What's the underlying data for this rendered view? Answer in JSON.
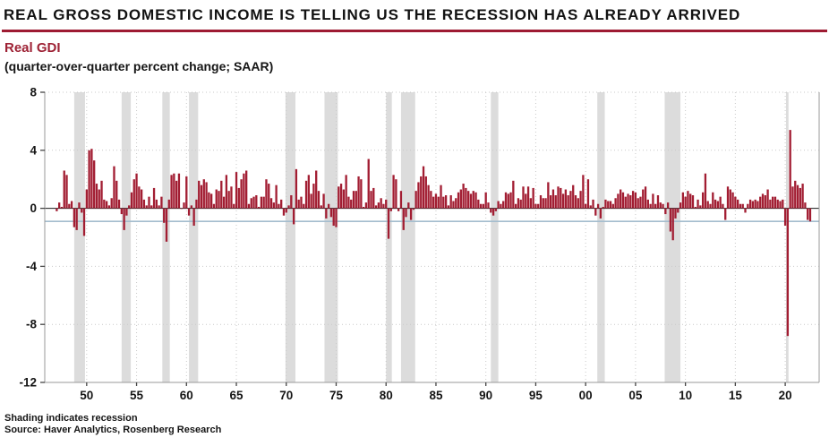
{
  "header": {
    "title": "REAL GROSS DOMESTIC INCOME IS TELLING US THE RECESSION HAS ALREADY ARRIVED",
    "series_label": "Real GDI",
    "unit_label": "(quarter-over-quarter percent change; SAAR)"
  },
  "footer": {
    "note": "Shading indicates recession",
    "source": "Source: Haver Analytics, Rosenberg Research"
  },
  "colors": {
    "bar": "#A21D32",
    "accent_red": "#9E1B32",
    "recession_shading": "#DCDCDC",
    "reference_line": "#A4BDCE",
    "grid": "#C9C9C9",
    "axis": "#9A9A9A",
    "tick": "#444444",
    "zero_line": "#1A1A1A",
    "text": "#151515"
  },
  "chart_data": {
    "type": "bar",
    "title": "Real GDI",
    "xlabel": "",
    "ylabel": "quarter-over-quarter percent change; SAAR",
    "ylim": [
      -12,
      8
    ],
    "y_ticks": [
      8,
      4,
      0,
      -4,
      -8,
      -12
    ],
    "dotted_gridline_values": [
      8,
      4,
      -4,
      -8
    ],
    "x_tick_years": [
      1950,
      1955,
      1960,
      1965,
      1970,
      1975,
      1980,
      1985,
      1990,
      1995,
      2000,
      2005,
      2010,
      2015,
      2020
    ],
    "x_tick_labels": [
      "50",
      "55",
      "60",
      "65",
      "70",
      "75",
      "80",
      "85",
      "90",
      "95",
      "00",
      "05",
      "10",
      "15",
      "20"
    ],
    "x_domain_years": [
      1945.8,
      2023.4
    ],
    "frequency": "quarterly",
    "start_year": 1947,
    "start_quarter": 1,
    "end_label": "2022 Q3",
    "reference_line_value": -0.9,
    "grid": true,
    "legend": "none",
    "recessions": [
      [
        1948.75,
        1949.83
      ],
      [
        1953.5,
        1954.42
      ],
      [
        1957.58,
        1958.33
      ],
      [
        1960.25,
        1961.17
      ],
      [
        1969.92,
        1970.92
      ],
      [
        1973.83,
        1975.17
      ],
      [
        1980.0,
        1980.58
      ],
      [
        1981.5,
        1982.92
      ],
      [
        1990.5,
        1991.25
      ],
      [
        2001.17,
        2001.92
      ],
      [
        2007.92,
        2009.5
      ],
      [
        2020.08,
        2020.33
      ]
    ],
    "values": [
      -0.2,
      0.4,
      0.1,
      2.6,
      2.3,
      0.3,
      0.5,
      -1.3,
      -1.5,
      0.4,
      -0.3,
      -1.9,
      1.3,
      4.0,
      4.1,
      3.3,
      1.7,
      1.3,
      1.9,
      0.6,
      0.5,
      0.2,
      0.7,
      2.9,
      1.9,
      0.6,
      -0.4,
      -1.5,
      -0.5,
      0.2,
      1.1,
      2.0,
      2.4,
      1.5,
      1.3,
      0.6,
      0.2,
      0.8,
      0.2,
      1.4,
      0.6,
      0.2,
      0.8,
      -1.0,
      -2.3,
      0.6,
      2.3,
      2.4,
      1.9,
      2.4,
      0.0,
      0.4,
      2.2,
      -0.5,
      0.2,
      -1.2,
      0.6,
      1.9,
      1.6,
      2.0,
      1.8,
      1.1,
      1.0,
      0.3,
      1.3,
      1.2,
      1.9,
      0.8,
      2.3,
      1.2,
      1.5,
      0.3,
      2.5,
      1.4,
      2.0,
      2.4,
      2.6,
      0.3,
      0.7,
      0.8,
      0.9,
      0.1,
      0.8,
      0.8,
      2.0,
      1.7,
      0.7,
      0.4,
      1.6,
      0.3,
      0.6,
      -0.5,
      -0.3,
      0.2,
      0.9,
      -1.1,
      2.7,
      0.6,
      0.8,
      0.3,
      1.9,
      2.3,
      1.0,
      1.7,
      2.6,
      1.2,
      0.2,
      1.0,
      -0.7,
      0.3,
      -0.6,
      -1.2,
      -1.3,
      1.5,
      1.7,
      1.3,
      2.3,
      0.8,
      0.6,
      1.2,
      1.2,
      2.2,
      2.0,
      0.1,
      0.4,
      3.4,
      1.2,
      1.4,
      0.2,
      0.4,
      0.7,
      0.3,
      0.6,
      -2.1,
      -0.2,
      2.3,
      2.0,
      -0.2,
      1.2,
      -1.5,
      -0.6,
      0.4,
      -0.8,
      -0.1,
      1.2,
      1.8,
      2.2,
      2.9,
      2.2,
      1.6,
      1.2,
      0.8,
      1.0,
      0.8,
      1.6,
      0.8,
      0.9,
      0.2,
      0.9,
      0.5,
      0.7,
      1.1,
      1.3,
      1.7,
      1.4,
      1.2,
      1.0,
      1.2,
      1.1,
      0.6,
      0.3,
      0.3,
      1.1,
      0.4,
      -0.3,
      -0.5,
      -0.2,
      0.5,
      0.3,
      0.5,
      1.1,
      1.0,
      1.1,
      1.9,
      0.3,
      0.7,
      0.6,
      1.5,
      1.0,
      1.5,
      0.7,
      1.4,
      0.3,
      0.3,
      0.9,
      0.7,
      0.7,
      1.8,
      0.9,
      1.3,
      0.9,
      1.5,
      1.4,
      1.0,
      1.3,
      0.9,
      1.2,
      1.6,
      0.9,
      0.7,
      1.2,
      2.3,
      0.3,
      2.0,
      0.2,
      0.6,
      -0.5,
      0.3,
      -0.7,
      0.1,
      0.6,
      0.5,
      0.5,
      0.3,
      0.7,
      1.0,
      1.3,
      1.1,
      0.8,
      1.0,
      0.9,
      1.2,
      1.1,
      0.7,
      0.8,
      1.3,
      1.5,
      0.6,
      0.3,
      1.0,
      0.3,
      0.9,
      0.4,
      0.3,
      -0.4,
      0.4,
      -1.6,
      -2.2,
      -0.7,
      -0.3,
      0.4,
      1.1,
      0.8,
      1.2,
      1.0,
      0.9,
      0.1,
      0.6,
      0.2,
      1.1,
      2.4,
      0.5,
      0.3,
      1.1,
      0.6,
      0.5,
      0.8,
      0.3,
      -0.8,
      1.5,
      1.3,
      1.1,
      0.8,
      0.6,
      0.3,
      0.3,
      -0.3,
      0.3,
      0.6,
      0.5,
      0.6,
      0.5,
      0.8,
      1.0,
      0.9,
      1.3,
      0.6,
      0.8,
      0.8,
      0.6,
      0.5,
      0.6,
      -1.2,
      -8.8,
      5.4,
      1.5,
      1.9,
      1.6,
      1.4,
      1.7,
      0.4,
      -0.8,
      -0.9
    ]
  }
}
